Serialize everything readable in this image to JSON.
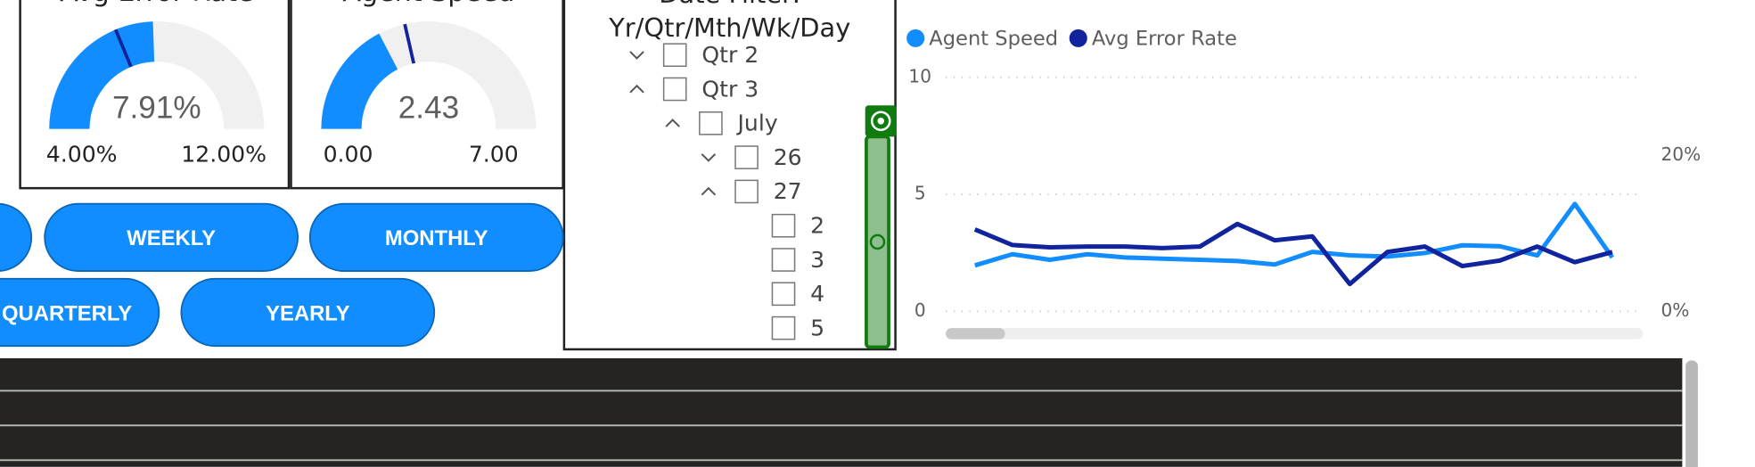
{
  "gauges": [
    {
      "title": "Avg Error Rate",
      "value": 7.91,
      "value_label": "7.91%",
      "min": 4,
      "min_label": "4.00%",
      "max": 12,
      "max_label": "12.00%",
      "target": 7.0,
      "color": "#118dff",
      "target_color": "#12239e"
    },
    {
      "title": "Agent Speed",
      "value": 2.43,
      "value_label": "2.43",
      "min": 0,
      "min_label": "0.00",
      "max": 7,
      "max_label": "7.00",
      "target": 3.0,
      "color": "#118dff",
      "target_color": "#12239e"
    }
  ],
  "buttons": [
    "WEEKLY",
    "MONTHLY",
    "QUARTERLY",
    "YEARLY"
  ],
  "slicer": {
    "title_lines": [
      "Date Filter:",
      "Yr/Qtr/Mth/Wk/Day"
    ],
    "items": [
      "Qtr 2",
      "Qtr 3",
      "July",
      "26",
      "27",
      "2",
      "3",
      "4",
      "5"
    ]
  },
  "chart_data": {
    "type": "line",
    "categories": [
      null,
      null,
      null,
      null,
      null,
      null,
      null,
      null,
      null,
      null,
      null,
      null,
      null,
      null,
      null,
      null,
      null,
      null
    ],
    "series": [
      {
        "name": "Agent Speed",
        "color": "#118dff",
        "values": [
          1.96,
          2.44,
          2.2,
          2.44,
          2.3,
          2.25,
          2.2,
          2.15,
          2.0,
          2.54,
          2.39,
          2.34,
          2.49,
          2.82,
          2.78,
          2.39,
          4.59,
          2.3
        ]
      },
      {
        "name": "Avg Error Rate",
        "color": "#12239e",
        "axis": "y2",
        "values": [
          10.5,
          8.5,
          8.2,
          8.3,
          8.3,
          8.1,
          8.3,
          11.2,
          9.1,
          9.6,
          3.5,
          7.6,
          8.3,
          5.8,
          6.5,
          8.3,
          6.3,
          7.6
        ]
      }
    ],
    "ylim": [
      0,
      10
    ],
    "yticks": [
      0,
      5,
      10
    ],
    "y2lim": [
      0,
      30
    ],
    "y2ticks": [
      {
        "value": 0,
        "label": "0%"
      },
      {
        "value": 20,
        "label": "20%"
      }
    ],
    "grid": true
  }
}
